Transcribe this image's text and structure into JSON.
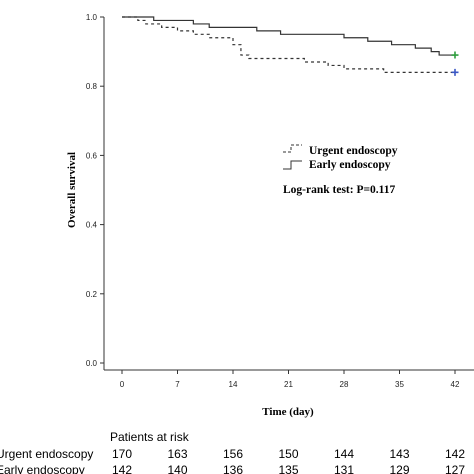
{
  "chart_data": {
    "type": "line",
    "step": true,
    "xlabel": "Time (day)",
    "ylabel": "Overall survival",
    "xlim": [
      0,
      42
    ],
    "ylim": [
      0,
      1.0
    ],
    "x_ticks": [
      0,
      7,
      14,
      21,
      28,
      35,
      42
    ],
    "y_ticks": [
      "0.0",
      "0.2",
      "0.4",
      "0.6",
      "0.8",
      "1.0"
    ],
    "grid": false,
    "legend": {
      "placement": "right",
      "entries": [
        {
          "label": "Urgent endoscopy",
          "style": "dashed"
        },
        {
          "label": "Early endoscopy",
          "style": "solid"
        }
      ]
    },
    "annotation": "Log-rank test: P=0.117",
    "series": [
      {
        "name": "Urgent endoscopy",
        "style": "dashed",
        "censor_color": "#3a57c4",
        "points": [
          [
            0,
            1.0
          ],
          [
            2,
            0.99
          ],
          [
            3,
            0.98
          ],
          [
            5,
            0.97
          ],
          [
            7,
            0.96
          ],
          [
            9,
            0.95
          ],
          [
            11,
            0.94
          ],
          [
            14,
            0.92
          ],
          [
            15,
            0.89
          ],
          [
            16,
            0.88
          ],
          [
            23,
            0.87
          ],
          [
            26,
            0.86
          ],
          [
            28,
            0.85
          ],
          [
            33,
            0.84
          ],
          [
            42,
            0.84
          ]
        ]
      },
      {
        "name": "Early endoscopy",
        "style": "solid",
        "censor_color": "#2e9e3e",
        "points": [
          [
            0,
            1.0
          ],
          [
            4,
            0.99
          ],
          [
            9,
            0.98
          ],
          [
            11,
            0.97
          ],
          [
            17,
            0.96
          ],
          [
            20,
            0.95
          ],
          [
            28,
            0.94
          ],
          [
            31,
            0.93
          ],
          [
            34,
            0.92
          ],
          [
            37,
            0.91
          ],
          [
            39,
            0.9
          ],
          [
            40,
            0.89
          ],
          [
            42,
            0.89
          ]
        ]
      }
    ],
    "risk_table": {
      "title": "Patients at risk",
      "times": [
        0,
        7,
        14,
        21,
        28,
        35,
        42
      ],
      "rows": [
        {
          "label": "Urgent endoscopy",
          "values": [
            "170",
            "163",
            "156",
            "150",
            "144",
            "143",
            "142"
          ]
        },
        {
          "label": "Early endoscopy",
          "values": [
            "142",
            "140",
            "136",
            "135",
            "131",
            "129",
            "127"
          ]
        }
      ]
    }
  }
}
